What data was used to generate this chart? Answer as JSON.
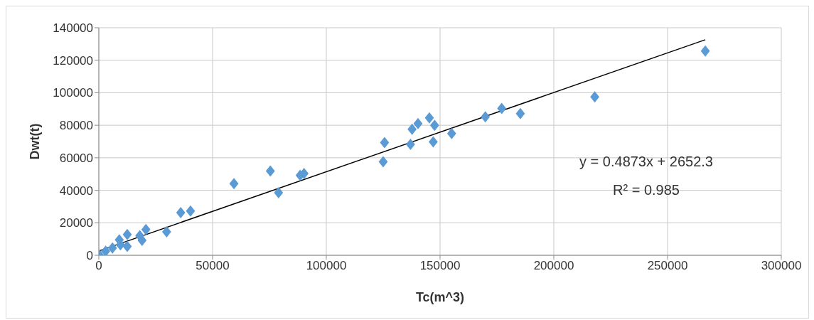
{
  "chart_data": {
    "type": "scatter",
    "xlabel": "Tc(m^3)",
    "ylabel": "Dwt(t)",
    "xlim": [
      0,
      300000
    ],
    "xticks": [
      0,
      50000,
      100000,
      150000,
      200000,
      250000,
      300000
    ],
    "ylim": [
      0,
      140000
    ],
    "yticks": [
      0,
      20000,
      40000,
      60000,
      80000,
      100000,
      120000,
      140000
    ],
    "grid": true,
    "legend": false,
    "marker": "diamond",
    "annotations": [
      "y = 0.4873x + 2652.3",
      "R² = 0.985"
    ],
    "series": [
      {
        "color": "#5b9bd5",
        "x": [
          300,
          3000,
          6000,
          9000,
          9500,
          12500,
          12500,
          18000,
          19000,
          20700,
          29800,
          36000,
          40300,
          59400,
          75400,
          79000,
          88500,
          90200,
          125000,
          125600,
          137000,
          137700,
          140300,
          145300,
          147600,
          147000,
          155100,
          169900,
          177100,
          185300,
          218000,
          266600
        ],
        "values": [
          0,
          2500,
          4500,
          9500,
          6500,
          12800,
          5500,
          12000,
          9200,
          15900,
          14400,
          26200,
          27200,
          44100,
          51800,
          38500,
          49200,
          50300,
          57500,
          69300,
          68200,
          77500,
          81000,
          84600,
          80000,
          69800,
          74900,
          85200,
          90300,
          87200,
          97500,
          125700
        ]
      },
      {
        "type": "line",
        "color": "#000000",
        "line_style": "solid",
        "marker": "none",
        "x": [
          300,
          266600
        ],
        "values": [
          2800,
          132600
        ]
      }
    ]
  }
}
